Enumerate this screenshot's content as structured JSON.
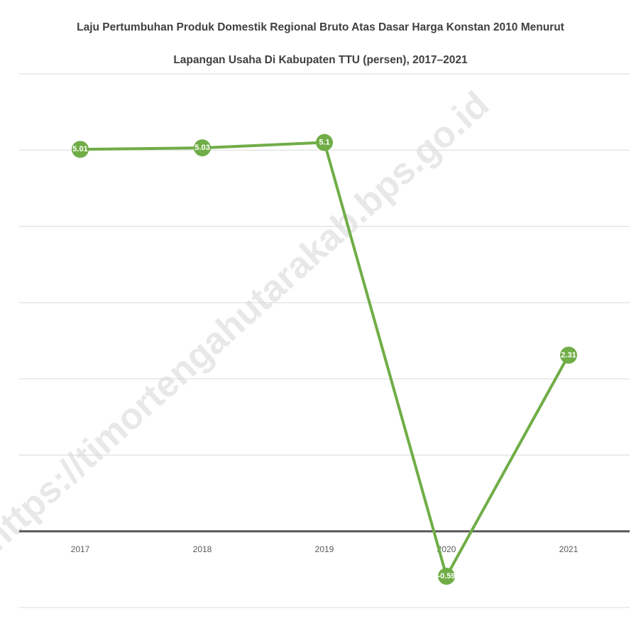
{
  "chart_data": {
    "type": "line",
    "title": "Laju Pertumbuhan Produk Domestik Regional Bruto Atas Dasar Harga Konstan 2010 Menurut Lapangan Usaha Di Kabupaten TTU (persen), 2017–2021",
    "categories": [
      "2017",
      "2018",
      "2019",
      "2020",
      "2021"
    ],
    "values": [
      5.01,
      5.03,
      5.1,
      -0.59,
      2.31
    ],
    "color": "#70ad47",
    "ylim": [
      -1,
      6
    ],
    "yticks": [
      -1,
      0,
      1,
      2,
      3,
      4,
      5,
      6
    ],
    "grid": true,
    "watermark": "https://timortengahutarakab.bps.go.id"
  }
}
